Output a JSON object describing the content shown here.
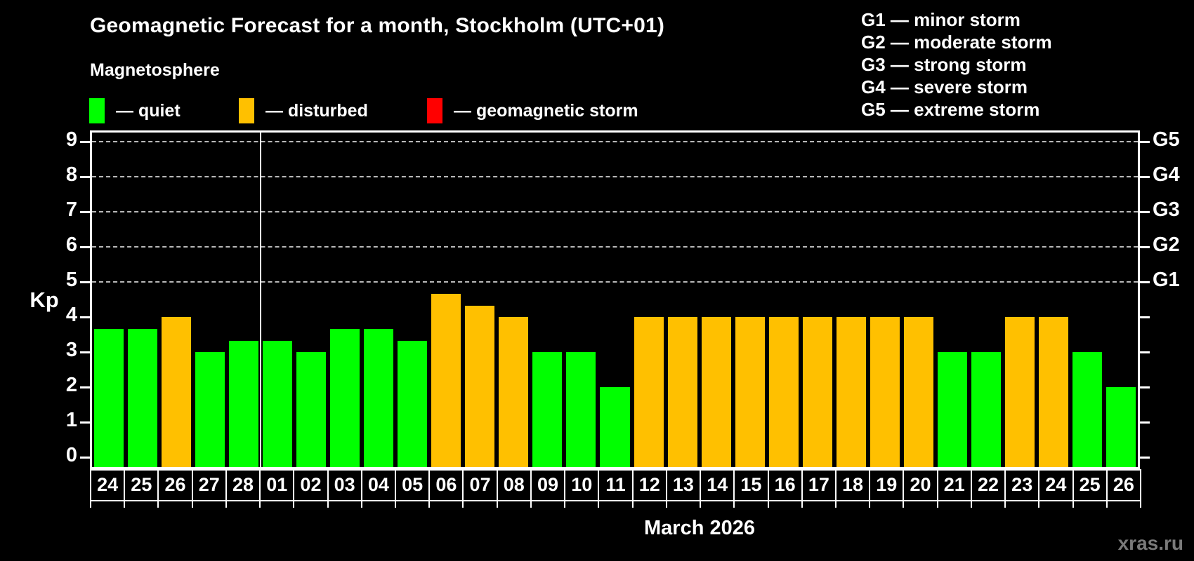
{
  "page": {
    "title": "Geomagnetic Forecast for a month, Stockholm (UTC+01)",
    "subtitle": "Magnetosphere",
    "watermark": "xras.ru"
  },
  "legend": {
    "items": [
      {
        "name": "quiet",
        "label": "— quiet",
        "color": "#00ff00"
      },
      {
        "name": "disturbed",
        "label": "— disturbed",
        "color": "#ffc000"
      },
      {
        "name": "geomagnetic-storm",
        "label": "— geomagnetic storm",
        "color": "#ff0000"
      }
    ]
  },
  "storm_scale": {
    "lines": [
      "G1 — minor storm",
      "G2 — moderate storm",
      "G3 — strong storm",
      "G4 — severe storm",
      "G5 — extreme storm"
    ]
  },
  "chart_data": {
    "type": "bar",
    "title": "Geomagnetic Forecast for a month, Stockholm (UTC+01)",
    "ylabel": "Kp",
    "xlabel": "March 2026",
    "ylim": [
      0,
      9
    ],
    "y_ticks": [
      0,
      1,
      2,
      3,
      4,
      5,
      6,
      7,
      8,
      9
    ],
    "grid": "dashed horizontal gridlines at Kp 5-9 only",
    "legend_position": "top-left",
    "right_axis": [
      {
        "label": "G1",
        "kp": 5
      },
      {
        "label": "G2",
        "kp": 6
      },
      {
        "label": "G3",
        "kp": 7
      },
      {
        "label": "G4",
        "kp": 8
      },
      {
        "label": "G5",
        "kp": 9
      }
    ],
    "month_separator_after_index": 4,
    "status_colors": {
      "quiet": "#00ff00",
      "disturbed": "#ffc000",
      "storm": "#ff0000"
    },
    "bars": [
      {
        "day": "24",
        "kp": 3.67,
        "status": "quiet"
      },
      {
        "day": "25",
        "kp": 3.67,
        "status": "quiet"
      },
      {
        "day": "26",
        "kp": 4,
        "status": "disturbed"
      },
      {
        "day": "27",
        "kp": 3,
        "status": "quiet"
      },
      {
        "day": "28",
        "kp": 3.33,
        "status": "quiet"
      },
      {
        "day": "01",
        "kp": 3.33,
        "status": "quiet"
      },
      {
        "day": "02",
        "kp": 3,
        "status": "quiet"
      },
      {
        "day": "03",
        "kp": 3.67,
        "status": "quiet"
      },
      {
        "day": "04",
        "kp": 3.67,
        "status": "quiet"
      },
      {
        "day": "05",
        "kp": 3.33,
        "status": "quiet"
      },
      {
        "day": "06",
        "kp": 4.67,
        "status": "disturbed"
      },
      {
        "day": "07",
        "kp": 4.33,
        "status": "disturbed"
      },
      {
        "day": "08",
        "kp": 4,
        "status": "disturbed"
      },
      {
        "day": "09",
        "kp": 3,
        "status": "quiet"
      },
      {
        "day": "10",
        "kp": 3,
        "status": "quiet"
      },
      {
        "day": "11",
        "kp": 2,
        "status": "quiet"
      },
      {
        "day": "12",
        "kp": 4,
        "status": "disturbed"
      },
      {
        "day": "13",
        "kp": 4,
        "status": "disturbed"
      },
      {
        "day": "14",
        "kp": 4,
        "status": "disturbed"
      },
      {
        "day": "15",
        "kp": 4,
        "status": "disturbed"
      },
      {
        "day": "16",
        "kp": 4,
        "status": "disturbed"
      },
      {
        "day": "17",
        "kp": 4,
        "status": "disturbed"
      },
      {
        "day": "18",
        "kp": 4,
        "status": "disturbed"
      },
      {
        "day": "19",
        "kp": 4,
        "status": "disturbed"
      },
      {
        "day": "20",
        "kp": 4,
        "status": "disturbed"
      },
      {
        "day": "21",
        "kp": 3,
        "status": "quiet"
      },
      {
        "day": "22",
        "kp": 3,
        "status": "quiet"
      },
      {
        "day": "23",
        "kp": 4,
        "status": "disturbed"
      },
      {
        "day": "24",
        "kp": 4,
        "status": "disturbed"
      },
      {
        "day": "25",
        "kp": 3,
        "status": "quiet"
      },
      {
        "day": "26",
        "kp": 2,
        "status": "quiet"
      }
    ]
  }
}
